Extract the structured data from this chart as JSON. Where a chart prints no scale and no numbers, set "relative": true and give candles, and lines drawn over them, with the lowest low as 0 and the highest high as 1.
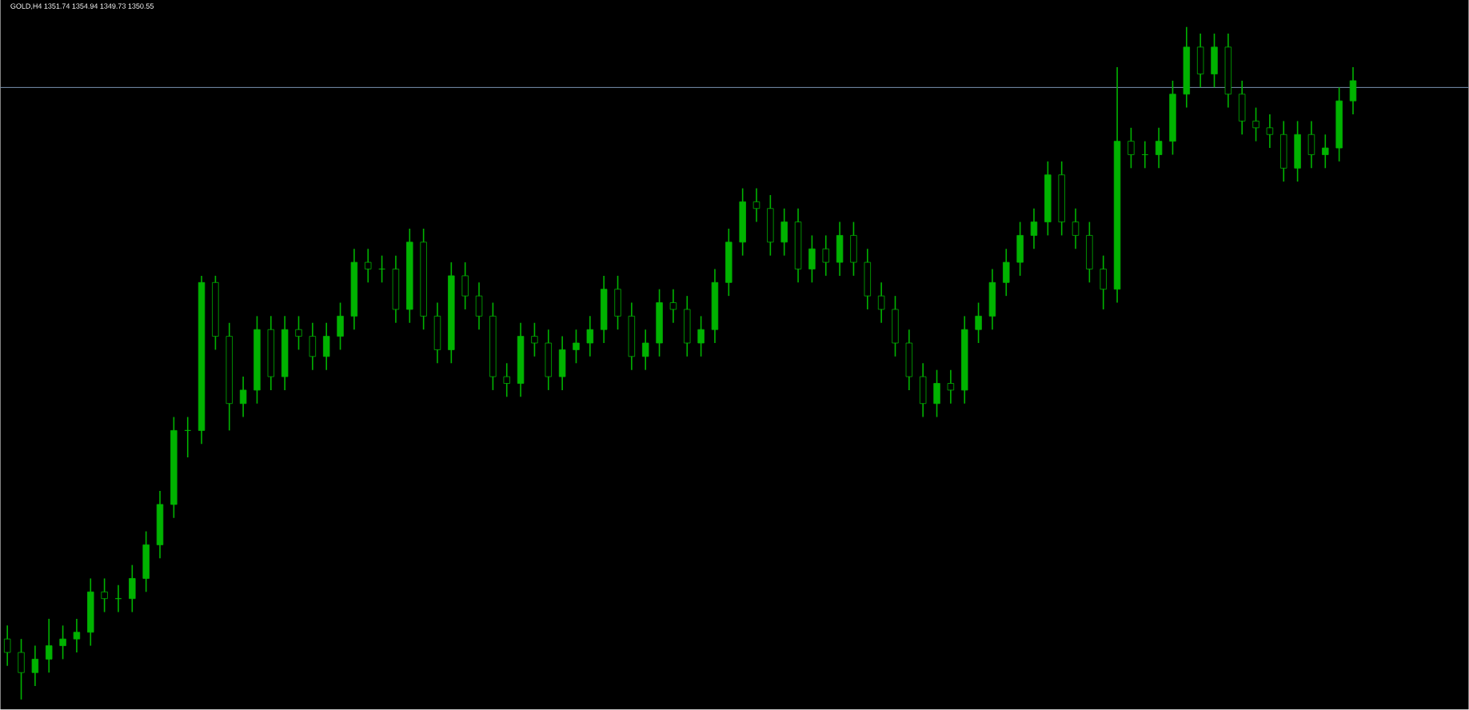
{
  "chart_data": {
    "type": "candlestick",
    "title": "GOLD,H4  1351.74 1354.94 1349.73 1350.55",
    "relative": true,
    "color": "#00b300",
    "categories": [
      null,
      null,
      null,
      null,
      null,
      null,
      null,
      null,
      null,
      null,
      null,
      null,
      null,
      null,
      null,
      null,
      null,
      null,
      null,
      null,
      null,
      null,
      null,
      null,
      null,
      null,
      null,
      null,
      null,
      null,
      null,
      null,
      null,
      null,
      null,
      null,
      null,
      null,
      null,
      null,
      null,
      null,
      null,
      null,
      null,
      null,
      null,
      null,
      null,
      null,
      null,
      null,
      null,
      null,
      null,
      null,
      null,
      null,
      null,
      null,
      null,
      null,
      null,
      null,
      null,
      null,
      null,
      null,
      null,
      null,
      null,
      null,
      null,
      null,
      null,
      null,
      null,
      null,
      null,
      null,
      null,
      null,
      null,
      null,
      null,
      null,
      null,
      null,
      null,
      null,
      null,
      null,
      null,
      null,
      null,
      null,
      null,
      null
    ],
    "ohlc": [
      [
        0.09,
        0.11,
        0.05,
        0.07
      ],
      [
        0.07,
        0.09,
        0.0,
        0.04
      ],
      [
        0.04,
        0.08,
        0.02,
        0.06
      ],
      [
        0.06,
        0.12,
        0.04,
        0.08
      ],
      [
        0.08,
        0.11,
        0.06,
        0.09
      ],
      [
        0.09,
        0.12,
        0.07,
        0.1
      ],
      [
        0.1,
        0.18,
        0.08,
        0.16
      ],
      [
        0.16,
        0.18,
        0.13,
        0.15
      ],
      [
        0.15,
        0.17,
        0.13,
        0.15
      ],
      [
        0.15,
        0.2,
        0.13,
        0.18
      ],
      [
        0.18,
        0.25,
        0.16,
        0.23
      ],
      [
        0.23,
        0.31,
        0.21,
        0.29
      ],
      [
        0.29,
        0.42,
        0.27,
        0.4
      ],
      [
        0.4,
        0.42,
        0.36,
        0.4
      ],
      [
        0.4,
        0.63,
        0.38,
        0.62
      ],
      [
        0.62,
        0.63,
        0.52,
        0.54
      ],
      [
        0.54,
        0.56,
        0.4,
        0.44
      ],
      [
        0.44,
        0.48,
        0.42,
        0.46
      ],
      [
        0.46,
        0.57,
        0.44,
        0.55
      ],
      [
        0.55,
        0.57,
        0.46,
        0.48
      ],
      [
        0.48,
        0.57,
        0.46,
        0.55
      ],
      [
        0.55,
        0.57,
        0.52,
        0.54
      ],
      [
        0.54,
        0.56,
        0.49,
        0.51
      ],
      [
        0.51,
        0.56,
        0.49,
        0.54
      ],
      [
        0.54,
        0.59,
        0.52,
        0.57
      ],
      [
        0.57,
        0.67,
        0.55,
        0.65
      ],
      [
        0.65,
        0.67,
        0.62,
        0.64
      ],
      [
        0.64,
        0.66,
        0.62,
        0.64
      ],
      [
        0.64,
        0.66,
        0.56,
        0.58
      ],
      [
        0.58,
        0.7,
        0.56,
        0.68
      ],
      [
        0.68,
        0.7,
        0.55,
        0.57
      ],
      [
        0.57,
        0.59,
        0.5,
        0.52
      ],
      [
        0.52,
        0.65,
        0.5,
        0.63
      ],
      [
        0.63,
        0.65,
        0.58,
        0.6
      ],
      [
        0.6,
        0.62,
        0.55,
        0.57
      ],
      [
        0.57,
        0.59,
        0.46,
        0.48
      ],
      [
        0.48,
        0.5,
        0.45,
        0.47
      ],
      [
        0.47,
        0.56,
        0.45,
        0.54
      ],
      [
        0.54,
        0.56,
        0.51,
        0.53
      ],
      [
        0.53,
        0.55,
        0.46,
        0.48
      ],
      [
        0.48,
        0.54,
        0.46,
        0.52
      ],
      [
        0.52,
        0.55,
        0.5,
        0.53
      ],
      [
        0.53,
        0.57,
        0.51,
        0.55
      ],
      [
        0.55,
        0.63,
        0.53,
        0.61
      ],
      [
        0.61,
        0.63,
        0.55,
        0.57
      ],
      [
        0.57,
        0.59,
        0.49,
        0.51
      ],
      [
        0.51,
        0.55,
        0.49,
        0.53
      ],
      [
        0.53,
        0.61,
        0.51,
        0.59
      ],
      [
        0.59,
        0.61,
        0.56,
        0.58
      ],
      [
        0.58,
        0.6,
        0.51,
        0.53
      ],
      [
        0.53,
        0.57,
        0.51,
        0.55
      ],
      [
        0.55,
        0.64,
        0.53,
        0.62
      ],
      [
        0.62,
        0.7,
        0.6,
        0.68
      ],
      [
        0.68,
        0.76,
        0.66,
        0.74
      ],
      [
        0.74,
        0.76,
        0.71,
        0.73
      ],
      [
        0.73,
        0.75,
        0.66,
        0.68
      ],
      [
        0.68,
        0.73,
        0.66,
        0.71
      ],
      [
        0.71,
        0.73,
        0.62,
        0.64
      ],
      [
        0.64,
        0.69,
        0.62,
        0.67
      ],
      [
        0.67,
        0.69,
        0.63,
        0.65
      ],
      [
        0.65,
        0.71,
        0.63,
        0.69
      ],
      [
        0.69,
        0.71,
        0.63,
        0.65
      ],
      [
        0.65,
        0.67,
        0.58,
        0.6
      ],
      [
        0.6,
        0.62,
        0.56,
        0.58
      ],
      [
        0.58,
        0.6,
        0.51,
        0.53
      ],
      [
        0.53,
        0.55,
        0.46,
        0.48
      ],
      [
        0.48,
        0.5,
        0.42,
        0.44
      ],
      [
        0.44,
        0.49,
        0.42,
        0.47
      ],
      [
        0.47,
        0.49,
        0.44,
        0.46
      ],
      [
        0.46,
        0.57,
        0.44,
        0.55
      ],
      [
        0.55,
        0.59,
        0.53,
        0.57
      ],
      [
        0.57,
        0.64,
        0.55,
        0.62
      ],
      [
        0.62,
        0.67,
        0.6,
        0.65
      ],
      [
        0.65,
        0.71,
        0.63,
        0.69
      ],
      [
        0.69,
        0.73,
        0.67,
        0.71
      ],
      [
        0.71,
        0.8,
        0.69,
        0.78
      ],
      [
        0.78,
        0.8,
        0.69,
        0.71
      ],
      [
        0.71,
        0.73,
        0.67,
        0.69
      ],
      [
        0.69,
        0.71,
        0.62,
        0.64
      ],
      [
        0.64,
        0.66,
        0.58,
        0.61
      ],
      [
        0.61,
        0.94,
        0.59,
        0.83
      ],
      [
        0.83,
        0.85,
        0.79,
        0.81
      ],
      [
        0.81,
        0.83,
        0.79,
        0.81
      ],
      [
        0.81,
        0.85,
        0.79,
        0.83
      ],
      [
        0.83,
        0.92,
        0.81,
        0.9
      ],
      [
        0.9,
        1.0,
        0.88,
        0.97
      ],
      [
        0.97,
        0.99,
        0.91,
        0.93
      ],
      [
        0.93,
        0.99,
        0.91,
        0.97
      ],
      [
        0.97,
        0.99,
        0.88,
        0.9
      ],
      [
        0.9,
        0.92,
        0.84,
        0.86
      ],
      [
        0.86,
        0.88,
        0.83,
        0.85
      ],
      [
        0.85,
        0.87,
        0.82,
        0.84
      ],
      [
        0.84,
        0.86,
        0.77,
        0.79
      ],
      [
        0.79,
        0.86,
        0.77,
        0.84
      ],
      [
        0.84,
        0.86,
        0.79,
        0.81
      ],
      [
        0.81,
        0.84,
        0.79,
        0.82
      ],
      [
        0.82,
        0.91,
        0.8,
        0.89
      ],
      [
        0.89,
        0.94,
        0.87,
        0.92
      ]
    ],
    "ref_lines": [
      {
        "axis": "y",
        "value": 0.91,
        "color": "#7f99b8"
      }
    ]
  }
}
